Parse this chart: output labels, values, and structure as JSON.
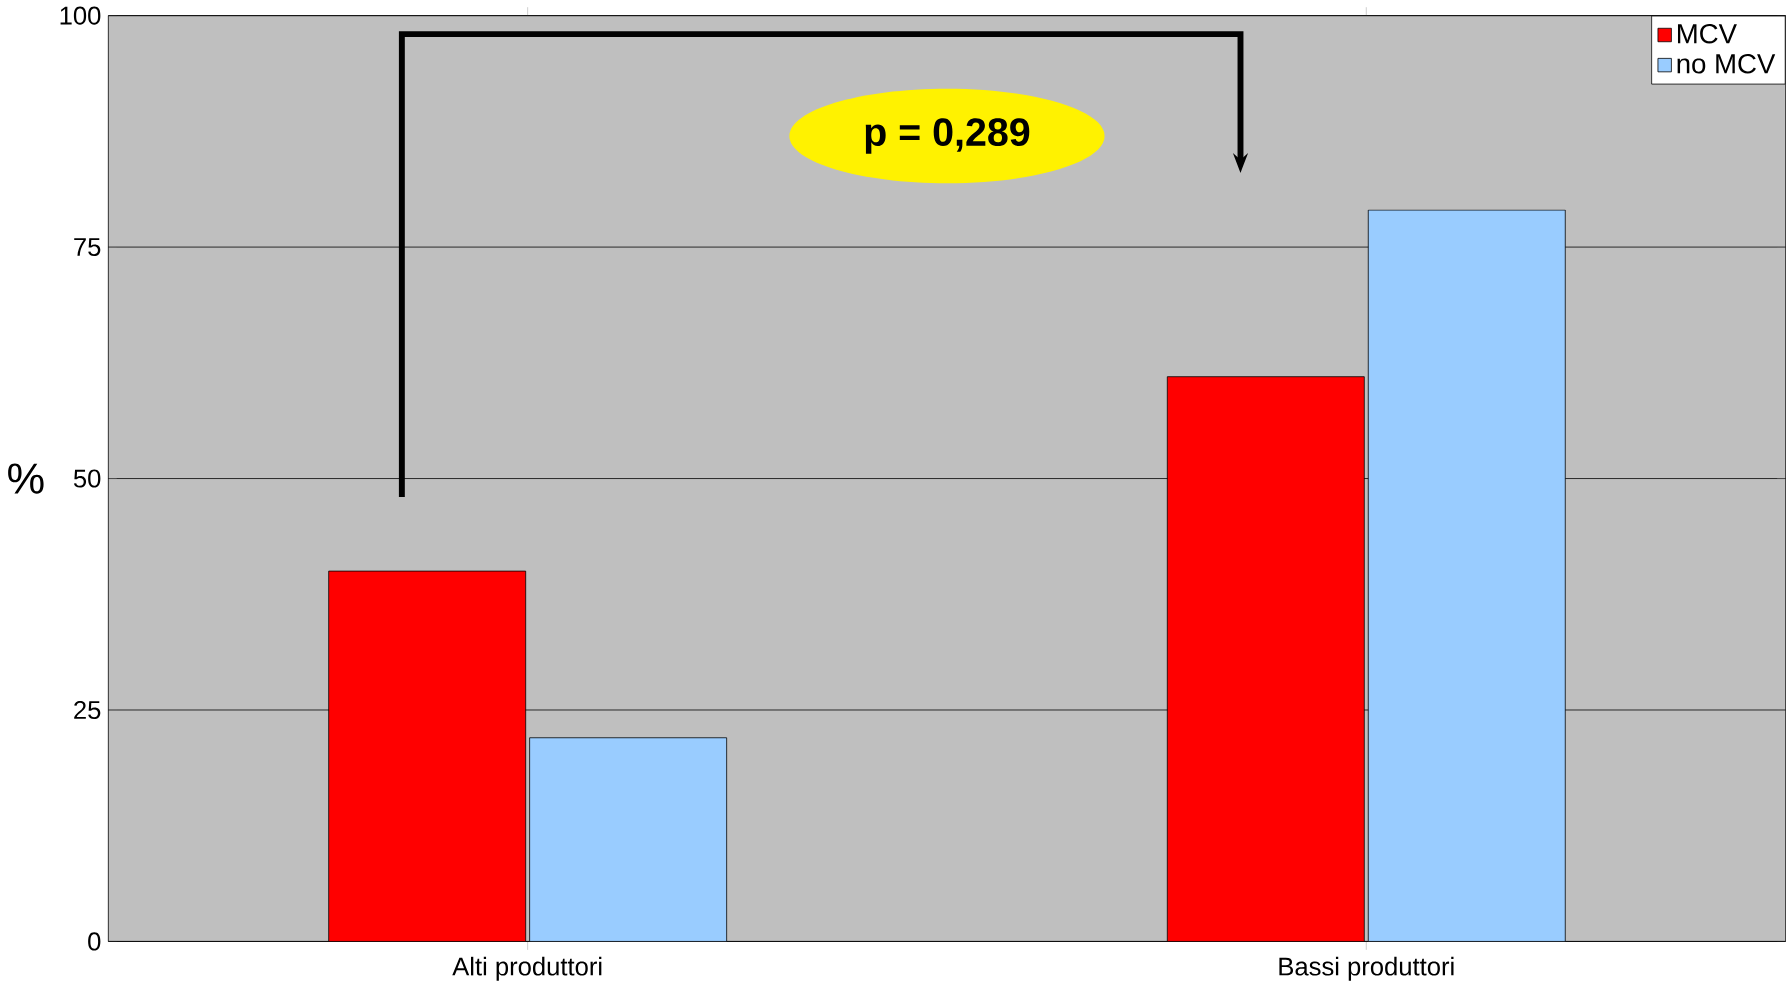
{
  "chart_data": {
    "type": "bar",
    "ylabel": "%",
    "categories": [
      "Alti produttori",
      "Bassi produttori"
    ],
    "series": [
      {
        "name": "MCV",
        "color": "#ff0000",
        "values": [
          40,
          61
        ]
      },
      {
        "name": "no MCV",
        "color": "#99ccff",
        "values": [
          22,
          79
        ]
      }
    ],
    "ylim": [
      0,
      100
    ],
    "yticks": [
      0,
      25,
      50,
      75,
      100
    ],
    "grid": "y",
    "legend": "top right",
    "annotations": [
      "p = 0,289"
    ]
  }
}
